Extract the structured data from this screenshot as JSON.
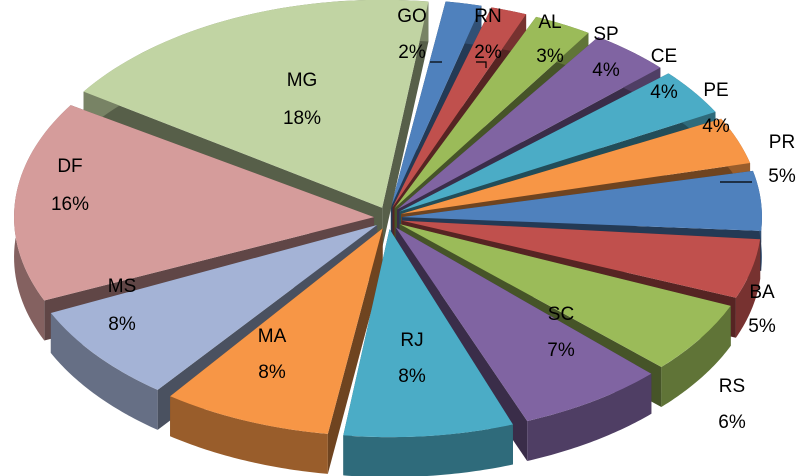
{
  "chart_data": {
    "type": "pie",
    "style": "3d-exploded",
    "legend": "none",
    "slices": [
      {
        "label": "GO",
        "value": 2,
        "value_label": "2%",
        "color": "#4f81bd"
      },
      {
        "label": "RN",
        "value": 2,
        "value_label": "2%",
        "color": "#c0504d"
      },
      {
        "label": "AL",
        "value": 3,
        "value_label": "3%",
        "color": "#9bbb59"
      },
      {
        "label": "SP",
        "value": 4,
        "value_label": "4%",
        "color": "#8064a2"
      },
      {
        "label": "CE",
        "value": 4,
        "value_label": "4%",
        "color": "#4bacc6"
      },
      {
        "label": "PE",
        "value": 4,
        "value_label": "4%",
        "color": "#f79646"
      },
      {
        "label": "PR",
        "value": 5,
        "value_label": "5%",
        "color": "#4f81bd"
      },
      {
        "label": "BA",
        "value": 5,
        "value_label": "5%",
        "color": "#c0504d"
      },
      {
        "label": "RS",
        "value": 6,
        "value_label": "6%",
        "color": "#9bbb59"
      },
      {
        "label": "SC",
        "value": 7,
        "value_label": "7%",
        "color": "#8064a2"
      },
      {
        "label": "RJ",
        "value": 8,
        "value_label": "8%",
        "color": "#4bacc6"
      },
      {
        "label": "MA",
        "value": 8,
        "value_label": "8%",
        "color": "#f79646"
      },
      {
        "label": "MS",
        "value": 8,
        "value_label": "8%",
        "color": "#a4b3d6"
      },
      {
        "label": "DF",
        "value": 16,
        "value_label": "16%",
        "color": "#d59c9b"
      },
      {
        "label": "MG",
        "value": 18,
        "value_label": "18%",
        "color": "#c1d4a3"
      }
    ]
  }
}
